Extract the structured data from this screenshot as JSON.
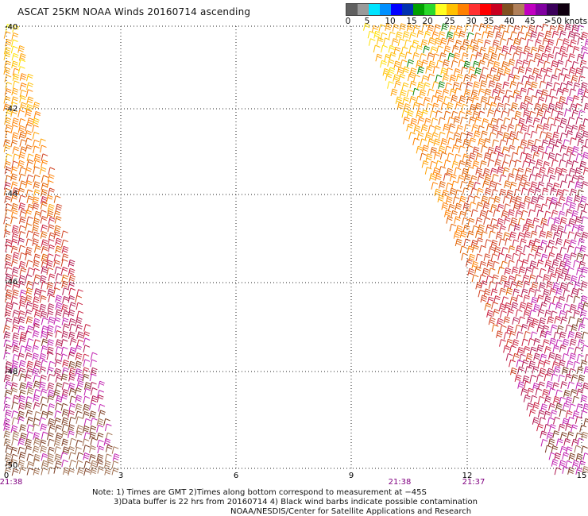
{
  "title": "ASCAT 25KM NOAA Winds 20160714 ascending",
  "legend": {
    "colors": [
      "#606060",
      "#9a9a9a",
      "#00e4ff",
      "#0090ff",
      "#0000ff",
      "#0030b0",
      "#00a000",
      "#2ad82a",
      "#ffff20",
      "#ffc000",
      "#ff8000",
      "#ff3030",
      "#ff0000",
      "#c80020",
      "#805020",
      "#b0805a",
      "#c000c0",
      "#8000a0",
      "#3a005a",
      "#100010"
    ],
    "labels": [
      "0",
      "5",
      "10",
      "15",
      "20",
      "25",
      "30",
      "35",
      "40",
      "45",
      ">50 knots"
    ]
  },
  "map": {
    "y_ticks": [
      "-40",
      "-42",
      "-44",
      "-46",
      "-48",
      "-50"
    ],
    "x_ticks": [
      "0",
      "3",
      "6",
      "9",
      "12",
      "15"
    ],
    "time_labels": [
      "21:38",
      "21:38",
      "21:37"
    ]
  },
  "notes": [
    "Note: 1) Times are GMT 2)Times along bottom correspond to measurement at −45S",
    "3)Data buffer is 22 hrs from 20160714 4) Black wind barbs indicate possible contamination",
    "NOAA/NESDIS/Center for Satellite Applications and Research"
  ]
}
